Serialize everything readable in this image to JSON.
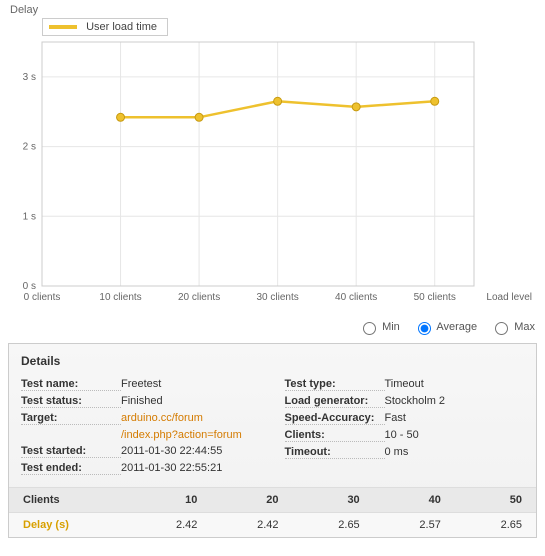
{
  "chart": {
    "type": "line",
    "y_axis_label": "Delay",
    "x_axis_label": "Load level",
    "legend": {
      "label": "User load time",
      "color": "#eec12e"
    },
    "plot_border_color": "#cccccc",
    "grid_color": "#e6e6e6",
    "background_color": "#ffffff",
    "line_color": "#eec12e",
    "line_width": 2.5,
    "marker_size": 4,
    "marker_fill": "#eec12e",
    "marker_stroke": "#c79a10",
    "tick_font_size": 10,
    "tick_color": "#666666",
    "x": {
      "min": 0,
      "max": 55,
      "ticks": [
        0,
        10,
        20,
        30,
        40,
        50
      ],
      "tick_labels": [
        "0 clients",
        "10 clients",
        "20 clients",
        "30 clients",
        "40 clients",
        "50 clients"
      ]
    },
    "y": {
      "min": 0,
      "max": 3.5,
      "ticks": [
        0,
        1,
        2,
        3
      ],
      "tick_labels": [
        "0 s",
        "1 s",
        "2 s",
        "3 s"
      ]
    },
    "series": {
      "x": [
        10,
        20,
        30,
        40,
        50
      ],
      "y": [
        2.42,
        2.42,
        2.65,
        2.57,
        2.65
      ]
    }
  },
  "radios": {
    "min": "Min",
    "avg": "Average",
    "max": "Max",
    "selected": "avg"
  },
  "details": {
    "heading": "Details",
    "left": {
      "test_name_label": "Test name:",
      "test_name": "Freetest",
      "test_status_label": "Test status:",
      "test_status": "Finished",
      "target_label": "Target:",
      "target_line1": "arduino.cc/forum",
      "target_line2": "/index.php?action=forum",
      "test_started_label": "Test started:",
      "test_started": "2011-01-30 22:44:55",
      "test_ended_label": "Test ended:",
      "test_ended": "2011-01-30 22:55:21"
    },
    "right": {
      "test_type_label": "Test type:",
      "test_type": "Timeout",
      "load_generator_label": "Load generator:",
      "load_generator": "Stockholm 2",
      "speed_acc_label": "Speed-Accuracy:",
      "speed_acc": "Fast",
      "clients_label": "Clients:",
      "clients": "10 - 50",
      "timeout_label": "Timeout:",
      "timeout": "0 ms"
    }
  },
  "results_table": {
    "header_label": "Clients",
    "row_label": "Delay (s)",
    "columns": [
      "10",
      "20",
      "30",
      "40",
      "50"
    ],
    "values": [
      "2.42",
      "2.42",
      "2.65",
      "2.57",
      "2.65"
    ]
  }
}
